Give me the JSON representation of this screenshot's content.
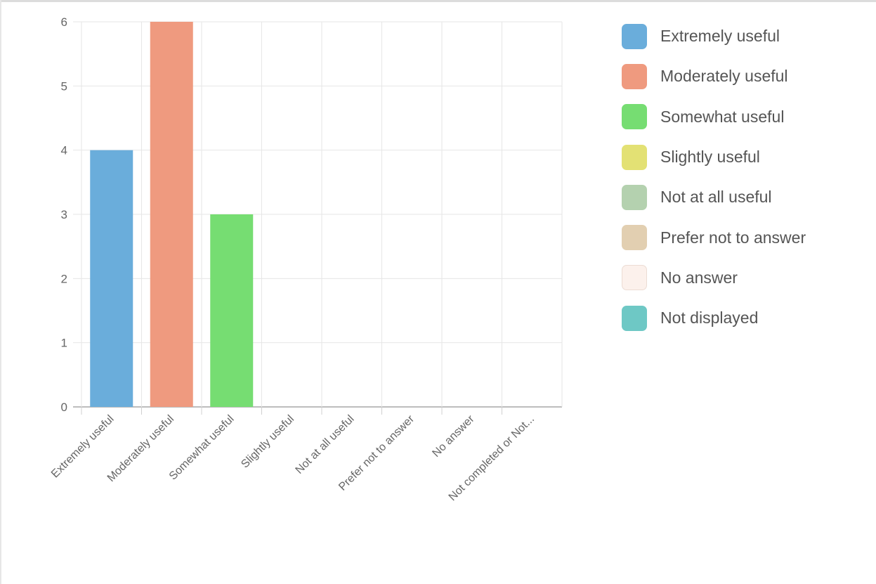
{
  "chart_data": {
    "type": "bar",
    "categories": [
      "Extremely useful",
      "Moderately useful",
      "Somewhat useful",
      "Slightly useful",
      "Not at all useful",
      "Prefer not to answer",
      "No answer",
      "Not completed or Not..."
    ],
    "values": [
      4,
      6,
      3,
      0,
      0,
      0,
      0,
      0
    ],
    "colors": [
      "#6aaddb",
      "#ef9a7f",
      "#76dd72",
      "#e3e174",
      "#b4d1af",
      "#e2cfb1",
      "#fcf1ec",
      "#6ec8c5"
    ],
    "y_ticks": [
      "0",
      "1",
      "2",
      "3",
      "4",
      "5",
      "6"
    ],
    "ylim": [
      0,
      6
    ],
    "grid": true,
    "legend_position": "right",
    "legend": [
      "Extremely useful",
      "Moderately useful",
      "Somewhat useful",
      "Slightly useful",
      "Not at all useful",
      "Prefer not to answer",
      "No answer",
      "Not displayed"
    ]
  }
}
